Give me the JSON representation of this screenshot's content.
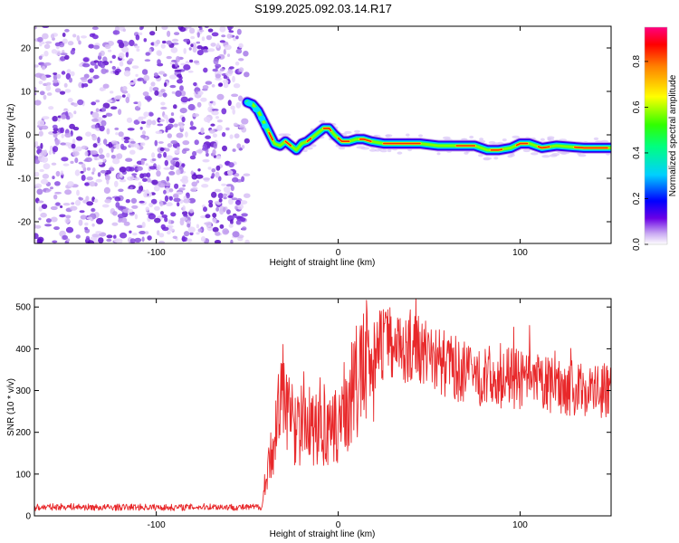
{
  "title": "S199.2025.092.03.14.R17",
  "chart_data": [
    {
      "type": "heatmap",
      "xlabel": "Height of straight line (km)",
      "ylabel": "Frequency (Hz)",
      "xlim": [
        -167,
        150
      ],
      "ylim": [
        -25,
        25
      ],
      "xticks": [
        -100,
        0,
        100
      ],
      "yticks": [
        -20,
        -10,
        0,
        10,
        20
      ],
      "noise_region_x": [
        -167,
        -50
      ],
      "ridge": {
        "x": [
          -50,
          -47,
          -44,
          -41,
          -38,
          -35,
          -32,
          -29,
          -26,
          -23,
          -20,
          -17,
          -14,
          -11,
          -8,
          -5,
          -2,
          2,
          6,
          10,
          14,
          18,
          25,
          35,
          45,
          55,
          65,
          75,
          82,
          88,
          95,
          100,
          105,
          112,
          120,
          135,
          150
        ],
        "freq": [
          7.5,
          7,
          5.5,
          3,
          0.5,
          -2,
          -2.5,
          -1.5,
          -2.5,
          -3.5,
          -2,
          -1.5,
          -0.5,
          0.5,
          1.5,
          1.5,
          0,
          -1.5,
          -1.5,
          -1,
          -1,
          -1.5,
          -2,
          -2,
          -2,
          -2.5,
          -2.5,
          -2.5,
          -3.5,
          -3.5,
          -3,
          -2,
          -2,
          -3,
          -2.5,
          -3,
          -3
        ]
      },
      "colorbar": {
        "label": "Normalized spectral amplitude",
        "ticks": [
          "0.0",
          "0.2",
          "0.4",
          "0.6",
          "0.8"
        ],
        "range": [
          0,
          0.95
        ]
      }
    },
    {
      "type": "line",
      "xlabel": "Height of straight line (km)",
      "ylabel": "SNR (10 * v/v)",
      "xlim": [
        -167,
        150
      ],
      "ylim": [
        0,
        520
      ],
      "xticks": [
        -100,
        0,
        100
      ],
      "yticks": [
        0,
        100,
        200,
        300,
        400,
        500
      ],
      "color": "#e8282a",
      "series": [
        {
          "x": [
            -167,
            -150,
            -130,
            -110,
            -90,
            -70,
            -50,
            -42,
            -38,
            -34,
            -30,
            -26,
            -22,
            -18,
            -14,
            -10,
            -6,
            -2,
            0,
            4,
            8,
            12,
            16,
            20,
            24,
            28,
            32,
            36,
            40,
            44,
            48,
            52,
            56,
            60,
            64,
            68,
            72,
            76,
            80,
            84,
            88,
            92,
            96,
            100,
            104,
            108,
            112,
            116,
            120,
            124,
            128,
            132,
            136,
            140,
            144,
            148,
            150
          ],
          "values": [
            20,
            22,
            20,
            21,
            20,
            22,
            20,
            22,
            120,
            220,
            300,
            230,
            200,
            250,
            200,
            230,
            190,
            200,
            230,
            260,
            300,
            330,
            360,
            390,
            410,
            420,
            415,
            400,
            410,
            405,
            395,
            380,
            370,
            360,
            355,
            345,
            340,
            335,
            330,
            335,
            325,
            330,
            330,
            325,
            320,
            315,
            320,
            310,
            315,
            310,
            305,
            300,
            305,
            300,
            300,
            300,
            305
          ]
        }
      ]
    }
  ]
}
